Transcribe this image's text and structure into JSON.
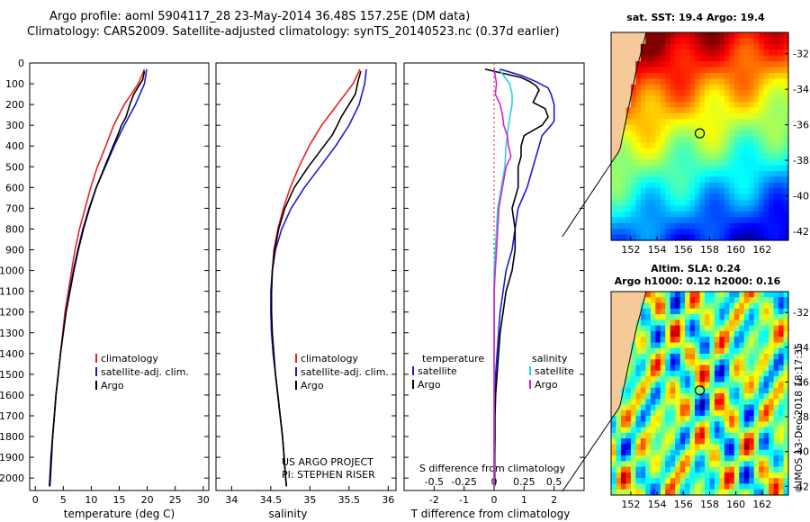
{
  "header": {
    "line1": "Argo profile: aoml 5904117_28 23-May-2014 36.48S 157.25E (DM data)",
    "line2": "Climatology: CARS2009. Satellite-adjusted climatology: synTS_20140523.nc (0.37d earlier)"
  },
  "credit": {
    "project": "US ARGO PROJECT",
    "pi": "PI: STEPHEN RISER",
    "footer": "©IMOS 13-Dec-2018 18:17:35"
  },
  "colors": {
    "climatology": "#e8231e",
    "satellite": "#1a1ad6",
    "argo": "#000000",
    "sal_satellite": "#21d6d6",
    "sal_argo": "#d61fd6"
  },
  "depth_ticks": [
    "0",
    "100",
    "200",
    "300",
    "400",
    "500",
    "600",
    "700",
    "800",
    "900",
    "1000",
    "1100",
    "1200",
    "1300",
    "1400",
    "1500",
    "1600",
    "1700",
    "1800",
    "1900",
    "2000"
  ],
  "chart_data": [
    {
      "type": "line",
      "xlabel": "temperature (deg C)",
      "ylabel": "",
      "xlim": [
        -1,
        31
      ],
      "ylim": [
        2060,
        0
      ],
      "xticks": [
        "0",
        "5",
        "10",
        "15",
        "20",
        "25",
        "30"
      ],
      "legend": [
        "climatology",
        "satellite-adj. clim.",
        "Argo"
      ],
      "series": [
        {
          "name": "climatology",
          "color": "#e8231e",
          "depth": [
            30,
            100,
            200,
            300,
            400,
            500,
            600,
            700,
            800,
            900,
            1000,
            1100,
            1200,
            1300,
            1400,
            1500,
            1600,
            1700,
            1800,
            1900,
            2000,
            2040
          ],
          "values": [
            19.5,
            18.4,
            15.9,
            14.0,
            12.6,
            11.1,
            9.9,
            8.9,
            7.9,
            7.1,
            6.5,
            5.9,
            5.3,
            4.9,
            4.5,
            4.1,
            3.7,
            3.4,
            3.1,
            2.8,
            2.6,
            2.5
          ]
        },
        {
          "name": "satellite-adj. clim.",
          "color": "#1a1ad6",
          "depth": [
            30,
            100,
            200,
            300,
            400,
            500,
            600,
            700,
            800,
            900,
            1000,
            1100,
            1200,
            1300,
            1400,
            1500,
            1600,
            1700,
            1800,
            1900,
            2000,
            2040
          ],
          "values": [
            19.9,
            19.5,
            17.9,
            15.9,
            14.1,
            12.5,
            10.9,
            9.6,
            8.5,
            7.6,
            6.8,
            6.1,
            5.5,
            5.0,
            4.5,
            4.1,
            3.7,
            3.4,
            3.1,
            2.8,
            2.6,
            2.5
          ]
        },
        {
          "name": "Argo",
          "color": "#000000",
          "depth": [
            40,
            80,
            150,
            200,
            260,
            300,
            350,
            400,
            500,
            600,
            700,
            800,
            900,
            1000,
            1100,
            1200,
            1300,
            1400,
            1500,
            1600,
            1700,
            1800,
            1900,
            2000,
            2040
          ],
          "values": [
            19.5,
            19.2,
            17.6,
            16.9,
            16.2,
            15.4,
            14.7,
            13.9,
            12.4,
            10.9,
            9.7,
            8.6,
            7.7,
            6.9,
            6.2,
            5.5,
            5.0,
            4.5,
            4.1,
            3.7,
            3.4,
            3.1,
            2.9,
            2.7,
            2.6
          ]
        }
      ]
    },
    {
      "type": "line",
      "xlabel": "salinity",
      "ylabel": "",
      "xlim": [
        33.8,
        36.1
      ],
      "ylim": [
        2060,
        0
      ],
      "xticks": [
        "34",
        "34.5",
        "35",
        "35.5",
        "36"
      ],
      "legend": [
        "climatology",
        "satellite-adj. clim.",
        "Argo"
      ],
      "series": [
        {
          "name": "climatology",
          "color": "#e8231e",
          "depth": [
            30,
            100,
            200,
            300,
            400,
            500,
            600,
            700,
            800,
            900,
            1000,
            1100,
            1200,
            1300,
            1400,
            1500,
            1600,
            1700,
            1800,
            1900,
            2000,
            2040
          ],
          "values": [
            35.64,
            35.55,
            35.35,
            35.15,
            34.99,
            34.86,
            34.75,
            34.66,
            34.59,
            34.54,
            34.52,
            34.51,
            34.5,
            34.51,
            34.53,
            34.56,
            34.59,
            34.62,
            34.65,
            34.67,
            34.69,
            34.7
          ]
        },
        {
          "name": "satellite-adj. clim.",
          "color": "#1a1ad6",
          "depth": [
            30,
            100,
            200,
            300,
            400,
            500,
            600,
            700,
            800,
            900,
            1000,
            1100,
            1200,
            1300,
            1400,
            1500,
            1600,
            1700,
            1800,
            1900,
            2000,
            2040
          ],
          "values": [
            35.72,
            35.7,
            35.63,
            35.5,
            35.33,
            35.13,
            34.93,
            34.76,
            34.64,
            34.56,
            34.52,
            34.5,
            34.5,
            34.51,
            34.53,
            34.56,
            34.59,
            34.62,
            34.65,
            34.67,
            34.69,
            34.7
          ]
        },
        {
          "name": "Argo",
          "color": "#000000",
          "depth": [
            40,
            80,
            150,
            200,
            260,
            300,
            350,
            400,
            500,
            600,
            700,
            800,
            900,
            1000,
            1100,
            1200,
            1300,
            1400,
            1500,
            1600,
            1700,
            1800,
            1900,
            2000,
            2040
          ],
          "values": [
            35.65,
            35.62,
            35.58,
            35.5,
            35.4,
            35.35,
            35.28,
            35.18,
            34.98,
            34.8,
            34.68,
            34.6,
            34.55,
            34.52,
            34.51,
            34.51,
            34.52,
            34.54,
            34.56,
            34.59,
            34.62,
            34.65,
            34.67,
            34.69,
            34.7
          ]
        }
      ]
    },
    {
      "type": "line",
      "xlabel": "T difference from climatology",
      "x2label": "S difference from climatology",
      "ylabel": "",
      "xlim": [
        -3,
        3
      ],
      "ylim": [
        2060,
        0
      ],
      "xticks": [
        "-2",
        "-1",
        "0",
        "1",
        "2"
      ],
      "x2ticks": [
        "-0.5",
        "-0.25",
        "0",
        "0.25",
        "0.5"
      ],
      "legend_left_title": "temperature",
      "legend_right_title": "salinity",
      "legend_left": [
        "satellite",
        "Argo"
      ],
      "legend_right": [
        "satellite",
        "Argo"
      ],
      "series": [
        {
          "name": "temperature satellite",
          "color": "#1a1ad6",
          "depth": [
            30,
            60,
            90,
            120,
            150,
            200,
            250,
            280,
            300,
            350,
            400,
            500,
            600,
            700,
            800,
            900,
            1000,
            1100,
            1200,
            1300,
            1400,
            1500,
            1600,
            1700,
            1800,
            1900,
            2000,
            2040
          ],
          "values": [
            0.2,
            0.9,
            1.4,
            1.8,
            1.9,
            2.0,
            2.0,
            2.0,
            1.9,
            1.6,
            1.5,
            1.3,
            1.1,
            0.8,
            0.7,
            0.6,
            0.4,
            0.3,
            0.2,
            0.15,
            0.1,
            0.05,
            0.03,
            0.02,
            0.01,
            0.01,
            0.0,
            0.0
          ]
        },
        {
          "name": "temperature Argo",
          "color": "#000000",
          "depth": [
            30,
            50,
            70,
            90,
            110,
            130,
            160,
            190,
            220,
            260,
            300,
            350,
            400,
            450,
            500,
            600,
            700,
            800,
            900,
            1000,
            1100,
            1200,
            1300,
            1400,
            1500,
            1600,
            1700,
            1800,
            1900,
            2000,
            2040
          ],
          "values": [
            -0.3,
            0.3,
            0.9,
            1.2,
            1.4,
            1.5,
            1.4,
            1.3,
            1.7,
            1.8,
            1.6,
            1.0,
            0.9,
            0.9,
            0.8,
            0.8,
            0.6,
            0.7,
            0.7,
            0.6,
            0.4,
            0.3,
            0.2,
            0.15,
            0.1,
            0.05,
            0.03,
            0.03,
            0.02,
            0.02,
            0.02
          ]
        },
        {
          "name": "salinity satellite",
          "color": "#21d6d6",
          "depth": [
            30,
            100,
            150,
            200,
            300,
            400,
            500,
            600,
            700,
            800,
            900,
            1000,
            1100,
            1200,
            1300,
            1400,
            1500,
            1600,
            1700,
            1800,
            1900,
            2000,
            2040
          ],
          "values": [
            0.04,
            0.13,
            0.15,
            0.15,
            0.12,
            0.1,
            0.09,
            0.06,
            0.03,
            0.02,
            0.01,
            0.0,
            0.0,
            0.0,
            0.0,
            0.0,
            0.0,
            0.0,
            0.0,
            0.0,
            0.0,
            0.0,
            0.0
          ]
        },
        {
          "name": "salinity Argo",
          "color": "#d61fd6",
          "depth": [
            30,
            100,
            150,
            200,
            250,
            300,
            350,
            400,
            450,
            500,
            600,
            700,
            800,
            900,
            1000,
            1100,
            1200,
            1300,
            1400,
            1500,
            1600,
            1700,
            1800,
            1900,
            2000,
            2040
          ],
          "values": [
            0.0,
            0.02,
            0.01,
            0.05,
            0.07,
            0.08,
            0.11,
            0.12,
            0.14,
            0.1,
            0.07,
            0.04,
            0.03,
            0.02,
            0.01,
            0.0,
            0.0,
            0.0,
            0.0,
            0.0,
            0.0,
            0.0,
            0.0,
            0.0,
            0.0,
            0.0
          ]
        }
      ]
    },
    {
      "type": "heatmap",
      "title": "sat. SST: 19.4  Argo: 19.4",
      "xticks": [
        "152",
        "154",
        "156",
        "158",
        "160",
        "162"
      ],
      "yticks": [
        "-32",
        "-34",
        "-36",
        "-38",
        "-40",
        "-42"
      ],
      "xlim": [
        150.5,
        164
      ],
      "ylim": [
        -42.5,
        -30.8
      ],
      "marker": {
        "lon": 157.25,
        "lat": -36.48
      },
      "colormap": "jet"
    },
    {
      "type": "heatmap",
      "title": "Altim. SLA: 0.24",
      "subtitle": "Argo h1000: 0.12 h2000: 0.16",
      "xticks": [
        "152",
        "154",
        "156",
        "158",
        "160",
        "162"
      ],
      "yticks": [
        "-32",
        "-34",
        "-36",
        "-38",
        "-40",
        "-42"
      ],
      "xlim": [
        150.5,
        164
      ],
      "ylim": [
        -42.5,
        -30.8
      ],
      "marker": {
        "lon": 157.25,
        "lat": -36.48
      },
      "colormap": "jet"
    }
  ]
}
